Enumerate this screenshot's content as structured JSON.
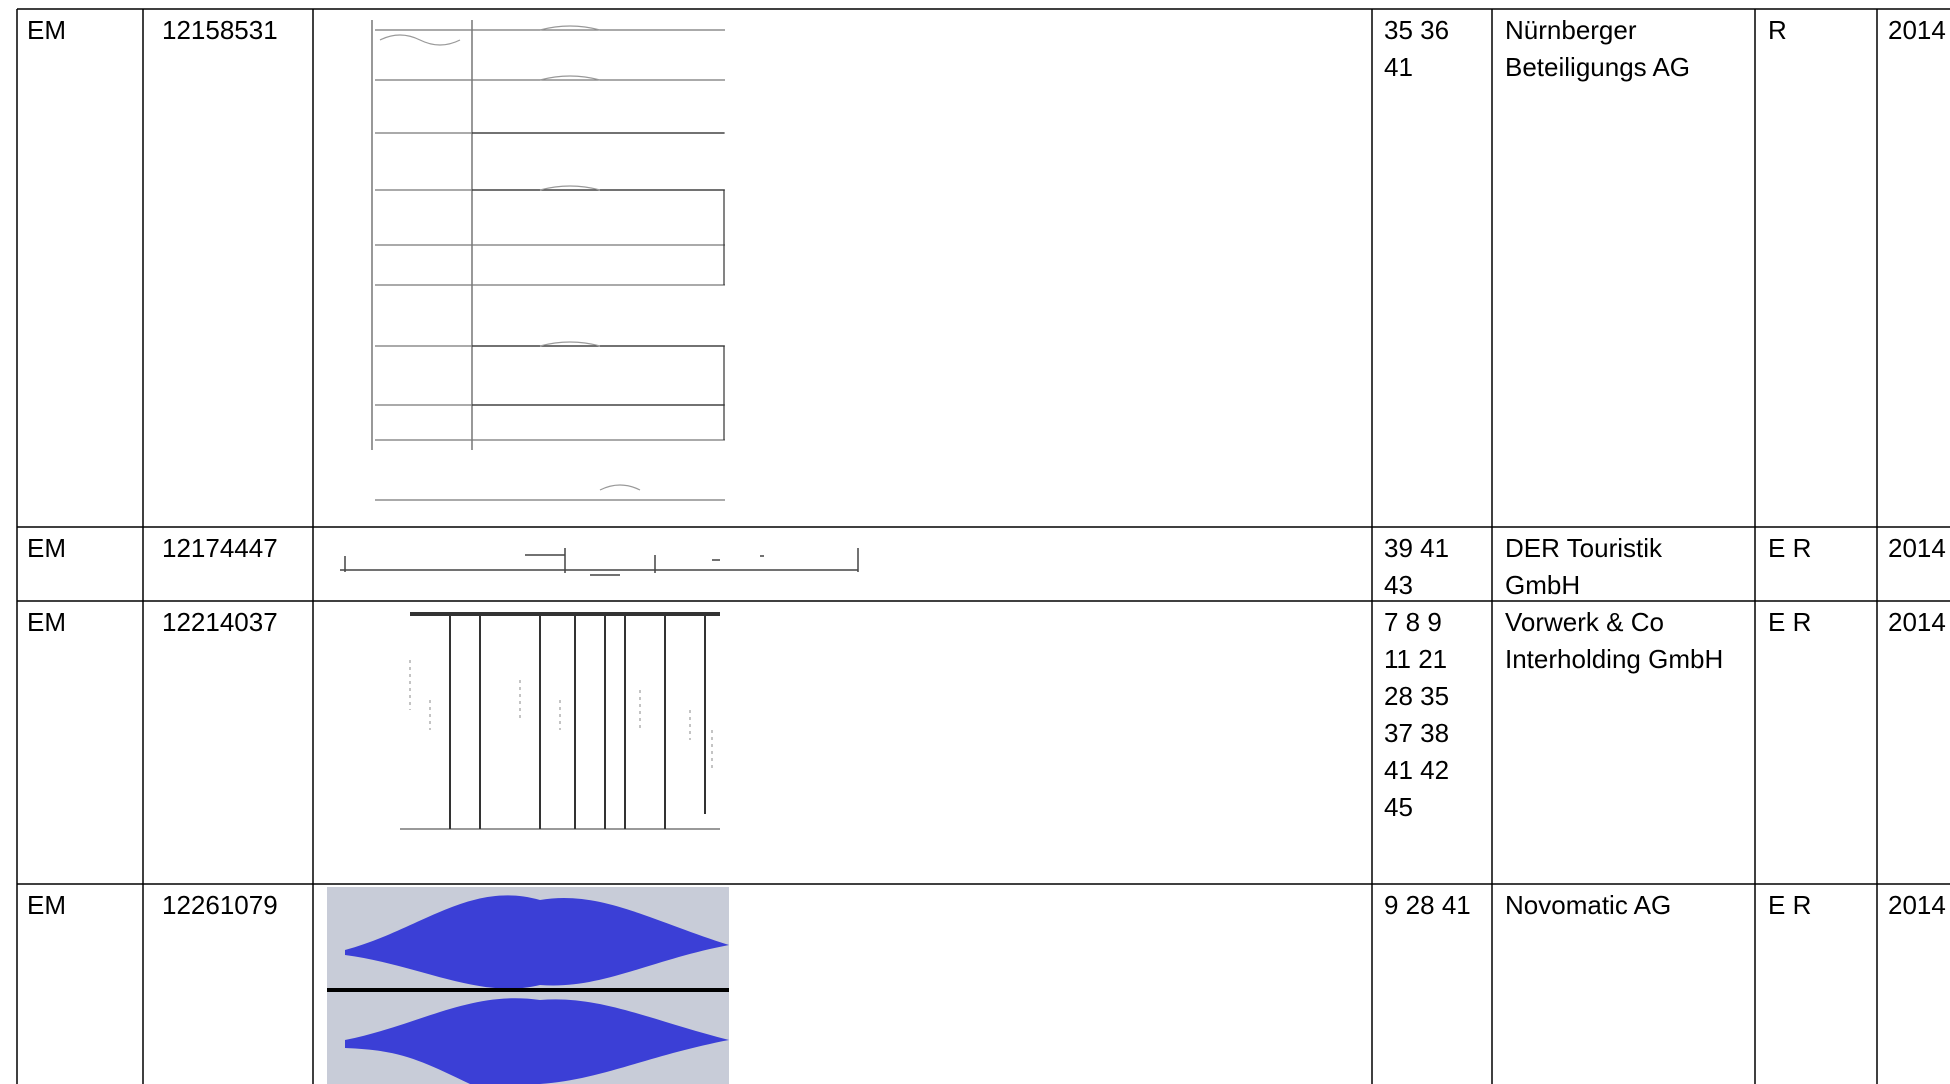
{
  "rows": [
    {
      "type": "EM",
      "number": "12158531",
      "classes": [
        "35 36",
        "41"
      ],
      "owner": [
        "Nürnberger",
        "Beteiligungs AG"
      ],
      "kind": "R",
      "year": "2014"
    },
    {
      "type": "EM",
      "number": "12174447",
      "classes": [
        "39 41",
        "43"
      ],
      "owner": [
        "DER Touristik",
        "GmbH"
      ],
      "kind": "E R",
      "year": "2014"
    },
    {
      "type": "EM",
      "number": "12214037",
      "classes": [
        "7 8 9",
        "11 21",
        "28 35",
        "37 38",
        "41 42",
        "45"
      ],
      "owner": [
        "Vorwerk & Co",
        "Interholding GmbH"
      ],
      "kind": "E R",
      "year": "2014"
    },
    {
      "type": "EM",
      "number": "12261079",
      "classes": [
        "9 28 41"
      ],
      "owner": [
        "Novomatic AG"
      ],
      "kind": "E R",
      "year": "2014"
    }
  ]
}
